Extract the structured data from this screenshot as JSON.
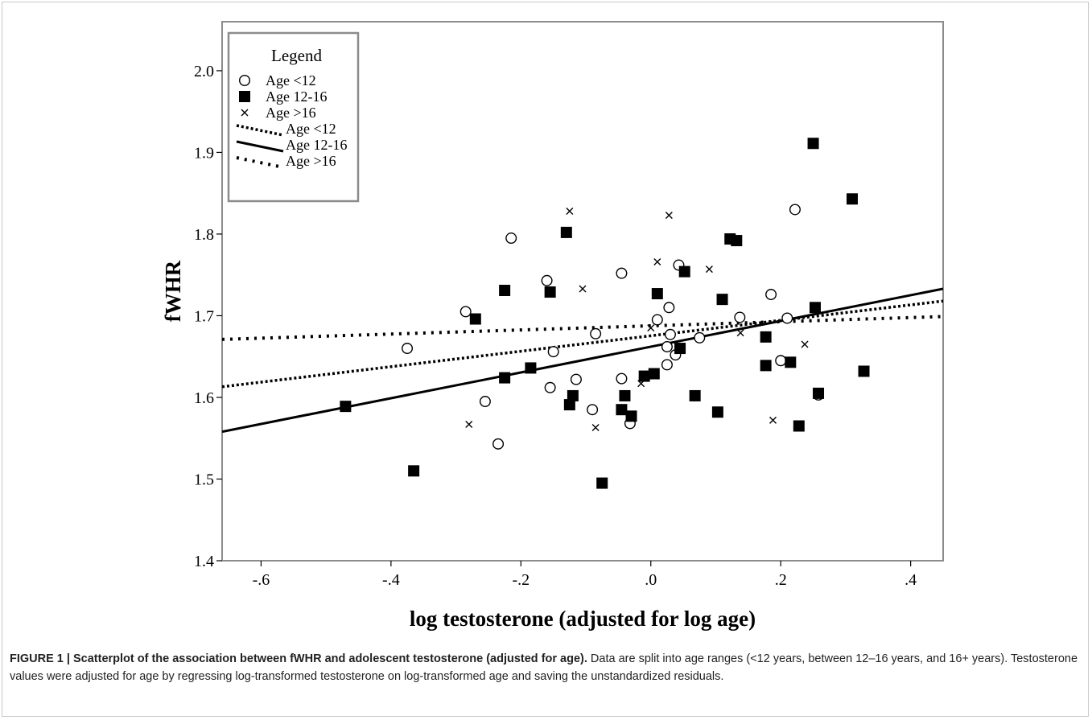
{
  "chart_data": {
    "type": "scatter",
    "xlabel": "log testosterone (adjusted for log age)",
    "ylabel": "fWHR",
    "xlim": [
      -0.66,
      0.45
    ],
    "ylim": [
      1.4,
      2.06
    ],
    "x_ticks": [
      {
        "value": -0.6,
        "label": "-.6"
      },
      {
        "value": -0.4,
        "label": "-.4"
      },
      {
        "value": -0.2,
        "label": "-.2"
      },
      {
        "value": 0.0,
        "label": ".0"
      },
      {
        "value": 0.2,
        "label": ".2"
      },
      {
        "value": 0.4,
        "label": ".4"
      }
    ],
    "y_ticks": [
      {
        "value": 1.4,
        "label": "1.4"
      },
      {
        "value": 1.5,
        "label": "1.5"
      },
      {
        "value": 1.6,
        "label": "1.6"
      },
      {
        "value": 1.7,
        "label": "1.7"
      },
      {
        "value": 1.8,
        "label": "1.8"
      },
      {
        "value": 1.9,
        "label": "1.9"
      },
      {
        "value": 2.0,
        "label": "2.0"
      }
    ],
    "grid": false,
    "legend": {
      "title": "Legend",
      "placement": "top-left",
      "items": [
        {
          "label": "Age <12",
          "kind": "marker",
          "marker": "circle"
        },
        {
          "label": "Age 12-16",
          "kind": "marker",
          "marker": "square"
        },
        {
          "label": "Age >16",
          "kind": "marker",
          "marker": "x"
        },
        {
          "label": "Age <12",
          "kind": "line",
          "line": "dense-dotted"
        },
        {
          "label": "Age 12-16",
          "kind": "line",
          "line": "solid"
        },
        {
          "label": "Age >16",
          "kind": "line",
          "line": "sparse-dotted"
        }
      ]
    },
    "series": [
      {
        "name": "Age <12",
        "marker": "circle",
        "points": [
          [
            -0.375,
            1.66
          ],
          [
            -0.285,
            1.705
          ],
          [
            -0.255,
            1.595
          ],
          [
            -0.235,
            1.543
          ],
          [
            -0.215,
            1.795
          ],
          [
            -0.16,
            1.743
          ],
          [
            -0.155,
            1.612
          ],
          [
            -0.15,
            1.656
          ],
          [
            -0.115,
            1.622
          ],
          [
            -0.09,
            1.585
          ],
          [
            -0.085,
            1.678
          ],
          [
            -0.045,
            1.752
          ],
          [
            -0.045,
            1.623
          ],
          [
            -0.032,
            1.568
          ],
          [
            0.01,
            1.695
          ],
          [
            0.025,
            1.64
          ],
          [
            0.025,
            1.662
          ],
          [
            0.028,
            1.71
          ],
          [
            0.03,
            1.677
          ],
          [
            0.038,
            1.652
          ],
          [
            0.043,
            1.762
          ],
          [
            0.075,
            1.673
          ],
          [
            0.137,
            1.698
          ],
          [
            0.185,
            1.726
          ],
          [
            0.2,
            1.645
          ],
          [
            0.21,
            1.697
          ],
          [
            0.222,
            1.83
          ],
          [
            0.258,
            1.603
          ]
        ]
      },
      {
        "name": "Age 12-16",
        "marker": "square",
        "points": [
          [
            -0.47,
            1.589
          ],
          [
            -0.365,
            1.51
          ],
          [
            -0.27,
            1.696
          ],
          [
            -0.225,
            1.731
          ],
          [
            -0.225,
            1.624
          ],
          [
            -0.185,
            1.636
          ],
          [
            -0.155,
            1.729
          ],
          [
            -0.13,
            1.802
          ],
          [
            -0.125,
            1.591
          ],
          [
            -0.12,
            1.602
          ],
          [
            -0.075,
            1.495
          ],
          [
            -0.045,
            1.585
          ],
          [
            -0.04,
            1.602
          ],
          [
            -0.03,
            1.577
          ],
          [
            -0.01,
            1.626
          ],
          [
            0.005,
            1.629
          ],
          [
            0.01,
            1.727
          ],
          [
            0.045,
            1.66
          ],
          [
            0.052,
            1.754
          ],
          [
            0.068,
            1.602
          ],
          [
            0.103,
            1.582
          ],
          [
            0.11,
            1.72
          ],
          [
            0.122,
            1.794
          ],
          [
            0.132,
            1.792
          ],
          [
            0.177,
            1.674
          ],
          [
            0.177,
            1.639
          ],
          [
            0.215,
            1.643
          ],
          [
            0.228,
            1.565
          ],
          [
            0.25,
            1.911
          ],
          [
            0.253,
            1.71
          ],
          [
            0.258,
            1.605
          ],
          [
            0.31,
            1.843
          ],
          [
            0.328,
            1.632
          ]
        ]
      },
      {
        "name": "Age >16",
        "marker": "x",
        "points": [
          [
            -0.28,
            1.567
          ],
          [
            -0.125,
            1.828
          ],
          [
            -0.105,
            1.733
          ],
          [
            -0.085,
            1.563
          ],
          [
            -0.015,
            1.617
          ],
          [
            0.0,
            1.685
          ],
          [
            0.01,
            1.766
          ],
          [
            0.028,
            1.823
          ],
          [
            0.09,
            1.757
          ],
          [
            0.138,
            1.679
          ],
          [
            0.188,
            1.572
          ],
          [
            0.237,
            1.665
          ]
        ]
      }
    ],
    "fit_lines": [
      {
        "name": "Age <12",
        "style": "dense-dotted",
        "points": [
          [
            -0.66,
            1.613
          ],
          [
            0.45,
            1.718
          ]
        ]
      },
      {
        "name": "Age 12-16",
        "style": "solid",
        "points": [
          [
            -0.66,
            1.558
          ],
          [
            0.45,
            1.733
          ]
        ]
      },
      {
        "name": "Age >16",
        "style": "sparse-dotted",
        "points": [
          [
            -0.66,
            1.671
          ],
          [
            0.45,
            1.699
          ]
        ]
      }
    ]
  },
  "caption": {
    "lead": "FIGURE 1 | Scatterplot of the association between fWHR and adolescent testosterone (adjusted for age).",
    "body": " Data are split into age ranges (<12 years, between 12–16 years, and 16+ years). Testosterone values were adjusted for age by regressing log-transformed testosterone on log-transformed age and saving the unstandardized residuals."
  },
  "colors": {
    "ink": "#000000",
    "frame": "#8c8c8c",
    "caption": "#222222"
  }
}
